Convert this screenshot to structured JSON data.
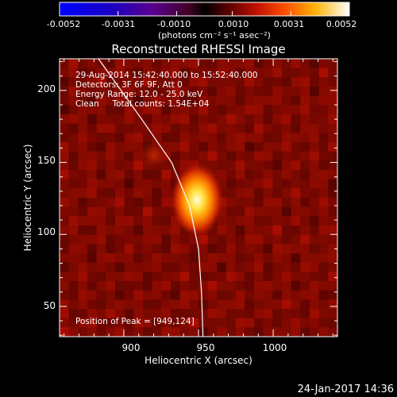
{
  "colorbar": {
    "tick_labels": [
      "-0.0052",
      "-0.0031",
      "-0.0010",
      "0.0010",
      "0.0031",
      "0.0052"
    ],
    "units": "(photons cm⁻² s⁻¹ asec⁻²)"
  },
  "title": "Reconstructed RHESSI Image",
  "annotations": {
    "time": "29-Aug-2014 15:42:40.000 to 15:52:40.000",
    "detectors": "Detectors: 3F 6F 9F, Att 0",
    "energy": "Energy Range: 12.0 - 25.0 keV",
    "method": "Clean     Total counts: 1.54E+04",
    "peak": "Position of Peak = [949,124]"
  },
  "axes": {
    "xlabel": "Heliocentric X (arcsec)",
    "ylabel": "Heliocentric Y (arcsec)",
    "xticks": [
      "900",
      "950",
      "1000"
    ],
    "yticks": [
      "50",
      "100",
      "150",
      "200"
    ]
  },
  "footer": {
    "date": "24-Jan-2017 14:36"
  },
  "chart_data": {
    "type": "heatmap",
    "title": "Reconstructed RHESSI Image",
    "xlabel": "Heliocentric X (arcsec)",
    "ylabel": "Heliocentric Y (arcsec)",
    "xlim": [
      857,
      1043
    ],
    "ylim": [
      29,
      222
    ],
    "xticks": [
      900,
      950,
      1000
    ],
    "yticks": [
      50,
      100,
      150,
      200
    ],
    "color_scale": {
      "min": -0.0052,
      "max": 0.0052,
      "ticks": [
        -0.0052,
        -0.0031,
        -0.001,
        0.001,
        0.0031,
        0.0052
      ]
    },
    "peak": {
      "x": 949,
      "y": 124
    },
    "secondary_sources": [
      {
        "x": 920,
        "y": 155
      }
    ],
    "limb_curve": [
      [
        883,
        222
      ],
      [
        912,
        180
      ],
      [
        932,
        150
      ],
      [
        944,
        120
      ],
      [
        950,
        90
      ],
      [
        952,
        60
      ],
      [
        953,
        29
      ]
    ],
    "colors": {
      "background": "#000000",
      "limb": "#ffffff",
      "image_low": "#4a0500",
      "image_high": "#ffffa0"
    }
  }
}
